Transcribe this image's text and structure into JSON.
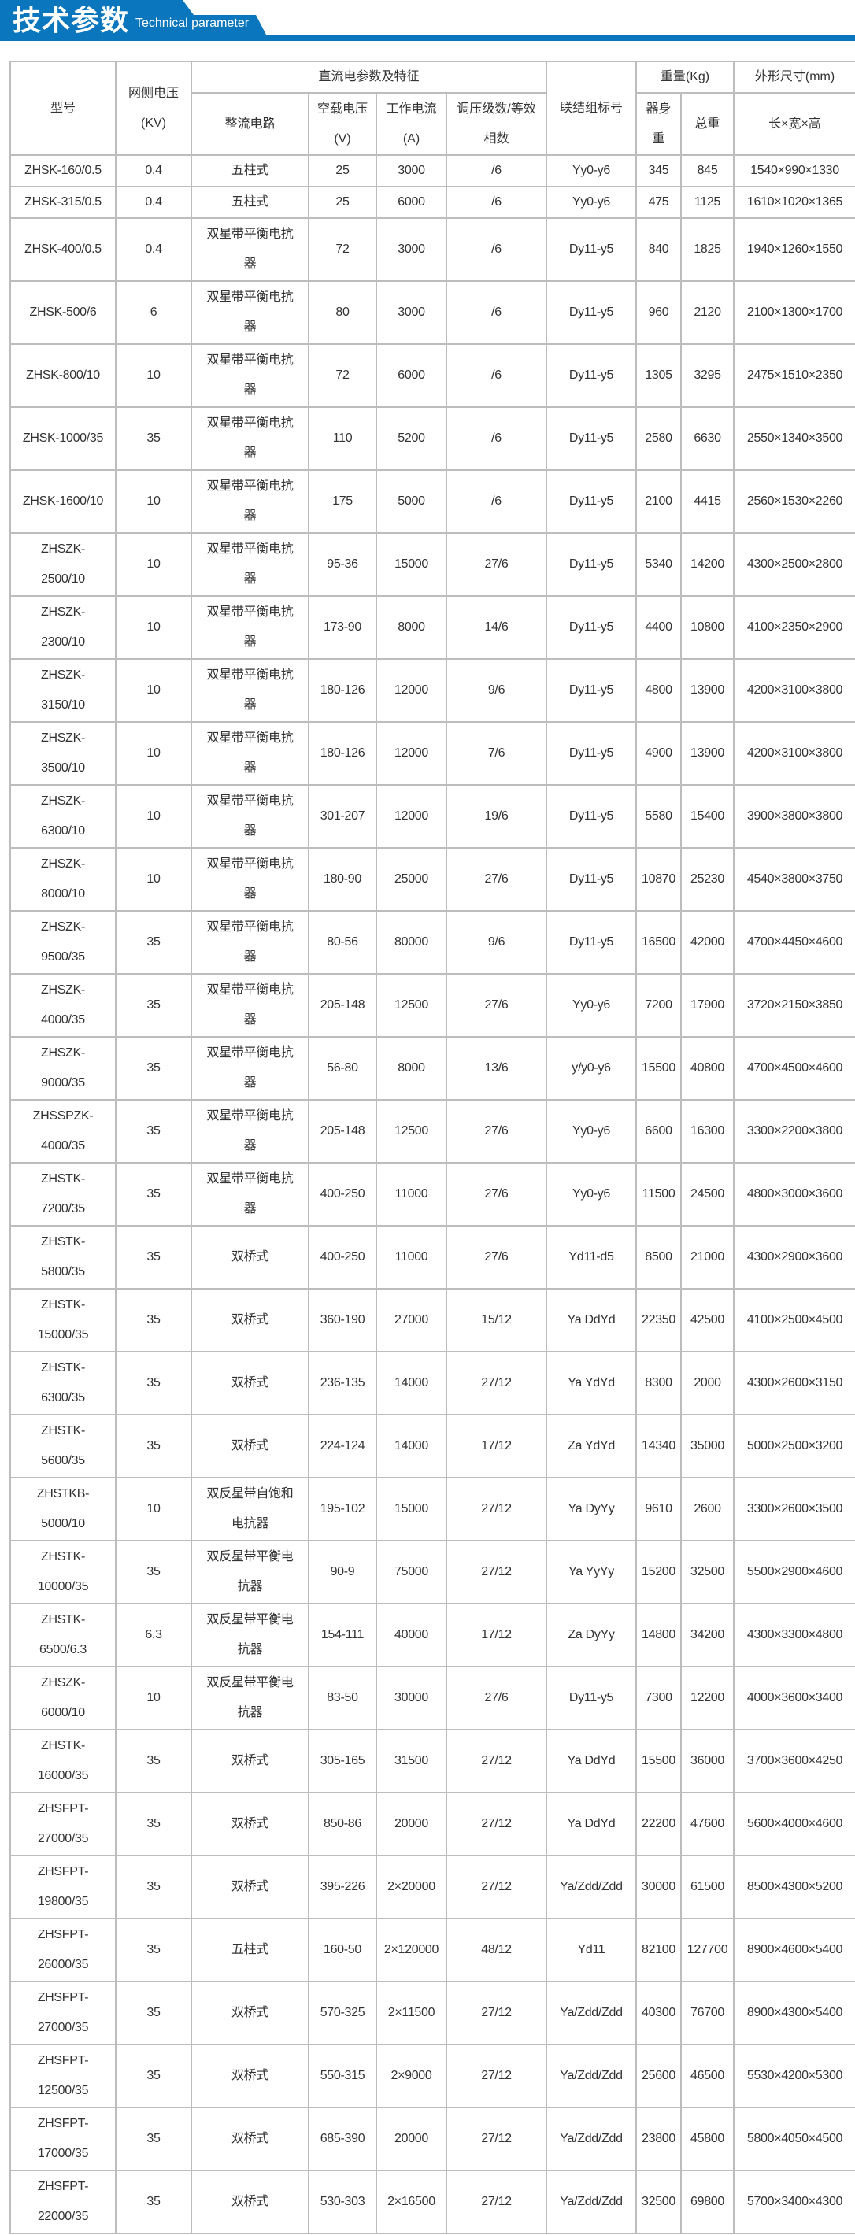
{
  "header": {
    "title_cn": "技术参数",
    "title_en": "Technical parameter",
    "brand_color": "#0a76bd"
  },
  "table": {
    "headers": {
      "model": "型号",
      "grid_voltage": "网侧电压\n(KV)",
      "dc_group": "直流电参数及特征",
      "rectifier": "整流电路",
      "no_load_voltage": "空载电压\n(V)",
      "working_current": "工作电流\n(A)",
      "regulation": "调压级数/等效\n相数",
      "connection": "联结组标号",
      "weight_group": "重量(Kg)",
      "body_weight": "器身\n重",
      "total_weight": "总重",
      "dimension_group": "外形尺寸(mm)",
      "dimension": "长×宽×高"
    },
    "rows": [
      [
        "ZHSK-160/0.5",
        "0.4",
        "五柱式",
        "25",
        "3000",
        "/6",
        "Yy0-y6",
        "345",
        "845",
        "1540×990×1330"
      ],
      [
        "ZHSK-315/0.5",
        "0.4",
        "五柱式",
        "25",
        "6000",
        "/6",
        "Yy0-y6",
        "475",
        "1125",
        "1610×1020×1365"
      ],
      [
        "ZHSK-400/0.5",
        "0.4",
        "双星带平衡电抗\n器",
        "72",
        "3000",
        "/6",
        "Dy11-y5",
        "840",
        "1825",
        "1940×1260×1550"
      ],
      [
        "ZHSK-500/6",
        "6",
        "双星带平衡电抗\n器",
        "80",
        "3000",
        "/6",
        "Dy11-y5",
        "960",
        "2120",
        "2100×1300×1700"
      ],
      [
        "ZHSK-800/10",
        "10",
        "双星带平衡电抗\n器",
        "72",
        "6000",
        "/6",
        "Dy11-y5",
        "1305",
        "3295",
        "2475×1510×2350"
      ],
      [
        "ZHSK-1000/35",
        "35",
        "双星带平衡电抗\n器",
        "110",
        "5200",
        "/6",
        "Dy11-y5",
        "2580",
        "6630",
        "2550×1340×3500"
      ],
      [
        "ZHSK-1600/10",
        "10",
        "双星带平衡电抗\n器",
        "175",
        "5000",
        "/6",
        "Dy11-y5",
        "2100",
        "4415",
        "2560×1530×2260"
      ],
      [
        "ZHSZK-\n2500/10",
        "10",
        "双星带平衡电抗\n器",
        "95-36",
        "15000",
        "27/6",
        "Dy11-y5",
        "5340",
        "14200",
        "4300×2500×2800"
      ],
      [
        "ZHSZK-\n2300/10",
        "10",
        "双星带平衡电抗\n器",
        "173-90",
        "8000",
        "14/6",
        "Dy11-y5",
        "4400",
        "10800",
        "4100×2350×2900"
      ],
      [
        "ZHSZK-\n3150/10",
        "10",
        "双星带平衡电抗\n器",
        "180-126",
        "12000",
        "9/6",
        "Dy11-y5",
        "4800",
        "13900",
        "4200×3100×3800"
      ],
      [
        "ZHSZK-\n3500/10",
        "10",
        "双星带平衡电抗\n器",
        "180-126",
        "12000",
        "7/6",
        "Dy11-y5",
        "4900",
        "13900",
        "4200×3100×3800"
      ],
      [
        "ZHSZK-\n6300/10",
        "10",
        "双星带平衡电抗\n器",
        "301-207",
        "12000",
        "19/6",
        "Dy11-y5",
        "5580",
        "15400",
        "3900×3800×3800"
      ],
      [
        "ZHSZK-\n8000/10",
        "10",
        "双星带平衡电抗\n器",
        "180-90",
        "25000",
        "27/6",
        "Dy11-y5",
        "10870",
        "25230",
        "4540×3800×3750"
      ],
      [
        "ZHSZK-\n9500/35",
        "35",
        "双星带平衡电抗\n器",
        "80-56",
        "80000",
        "9/6",
        "Dy11-y5",
        "16500",
        "42000",
        "4700×4450×4600"
      ],
      [
        "ZHSZK-\n4000/35",
        "35",
        "双星带平衡电抗\n器",
        "205-148",
        "12500",
        "27/6",
        "Yy0-y6",
        "7200",
        "17900",
        "3720×2150×3850"
      ],
      [
        "ZHSZK-\n9000/35",
        "35",
        "双星带平衡电抗\n器",
        "56-80",
        "8000",
        "13/6",
        "y/y0-y6",
        "15500",
        "40800",
        "4700×4500×4600"
      ],
      [
        "ZHSSPZK-\n4000/35",
        "35",
        "双星带平衡电抗\n器",
        "205-148",
        "12500",
        "27/6",
        "Yy0-y6",
        "6600",
        "16300",
        "3300×2200×3800"
      ],
      [
        "ZHSTK-\n7200/35",
        "35",
        "双星带平衡电抗\n器",
        "400-250",
        "11000",
        "27/6",
        "Yy0-y6",
        "11500",
        "24500",
        "4800×3000×3600"
      ],
      [
        "ZHSTK-\n5800/35",
        "35",
        "双桥式",
        "400-250",
        "11000",
        "27/6",
        "Yd11-d5",
        "8500",
        "21000",
        "4300×2900×3600"
      ],
      [
        "ZHSTK-\n15000/35",
        "35",
        "双桥式",
        "360-190",
        "27000",
        "15/12",
        "Ya DdYd",
        "22350",
        "42500",
        "4100×2500×4500"
      ],
      [
        "ZHSTK-\n6300/35",
        "35",
        "双桥式",
        "236-135",
        "14000",
        "27/12",
        "Ya YdYd",
        "8300",
        "2000",
        "4300×2600×3150"
      ],
      [
        "ZHSTK-\n5600/35",
        "35",
        "双桥式",
        "224-124",
        "14000",
        "17/12",
        "Za YdYd",
        "14340",
        "35000",
        "5000×2500×3200"
      ],
      [
        "ZHSTKB-\n5000/10",
        "10",
        "双反星带自饱和\n电抗器",
        "195-102",
        "15000",
        "27/12",
        "Ya DyYy",
        "9610",
        "2600",
        "3300×2600×3500"
      ],
      [
        "ZHSTK-\n10000/35",
        "35",
        "双反星带平衡电\n抗器",
        "90-9",
        "75000",
        "27/12",
        "Ya YyYy",
        "15200",
        "32500",
        "5500×2900×4600"
      ],
      [
        "ZHSTK-\n6500/6.3",
        "6.3",
        "双反星带平衡电\n抗器",
        "154-111",
        "40000",
        "17/12",
        "Za DyYy",
        "14800",
        "34200",
        "4300×3300×4800"
      ],
      [
        "ZHSZK-\n6000/10",
        "10",
        "双反星带平衡电\n抗器",
        "83-50",
        "30000",
        "27/6",
        "Dy11-y5",
        "7300",
        "12200",
        "4000×3600×3400"
      ],
      [
        "ZHSTK-\n16000/35",
        "35",
        "双桥式",
        "305-165",
        "31500",
        "27/12",
        "Ya DdYd",
        "15500",
        "36000",
        "3700×3600×4250"
      ],
      [
        "ZHSFPT-\n27000/35",
        "35",
        "双桥式",
        "850-86",
        "20000",
        "27/12",
        "Ya DdYd",
        "22200",
        "47600",
        "5600×4000×4600"
      ],
      [
        "ZHSFPT-\n19800/35",
        "35",
        "双桥式",
        "395-226",
        "2×20000",
        "27/12",
        "Ya/Zdd/Zdd",
        "30000",
        "61500",
        "8500×4300×5200"
      ],
      [
        "ZHSFPT-\n26000/35",
        "35",
        "五柱式",
        "160-50",
        "2×120000",
        "48/12",
        "Yd11",
        "82100",
        "127700",
        "8900×4600×5400"
      ],
      [
        "ZHSFPT-\n27000/35",
        "35",
        "双桥式",
        "570-325",
        "2×11500",
        "27/12",
        "Ya/Zdd/Zdd",
        "40300",
        "76700",
        "8900×4300×5400"
      ],
      [
        "ZHSFPT-\n12500/35",
        "35",
        "双桥式",
        "550-315",
        "2×9000",
        "27/12",
        "Ya/Zdd/Zdd",
        "25600",
        "46500",
        "5530×4200×5300"
      ],
      [
        "ZHSFPT-\n17000/35",
        "35",
        "双桥式",
        "685-390",
        "20000",
        "27/12",
        "Ya/Zdd/Zdd",
        "23800",
        "45800",
        "5800×4050×4500"
      ],
      [
        "ZHSFPT-\n22000/35",
        "35",
        "双桥式",
        "530-303",
        "2×16500",
        "27/12",
        "Ya/Zdd/Zdd",
        "32500",
        "69800",
        "5700×3400×4300"
      ]
    ]
  }
}
